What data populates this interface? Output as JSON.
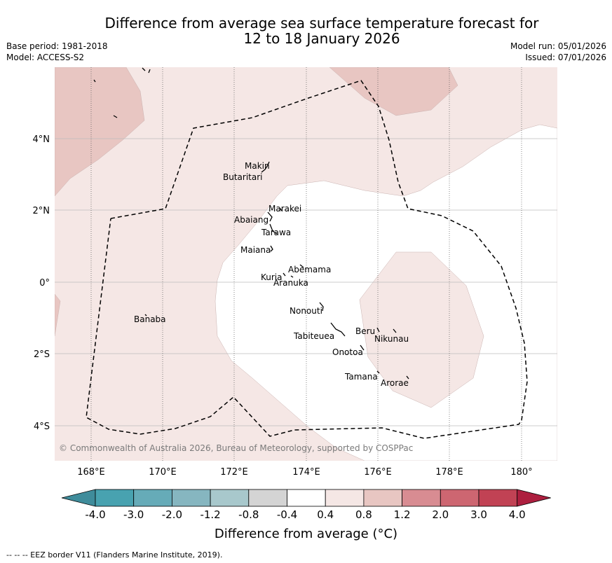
{
  "title": {
    "line1": "Difference from average sea surface temperature forecast for",
    "line2": "12 to 18 January 2026"
  },
  "meta": {
    "base_period": "Base period: 1981-2018",
    "model": "Model: ACCESS-S2",
    "model_run": "Model run: 05/01/2026",
    "issued": "Issued: 07/01/2026"
  },
  "copyright": "© Commonwealth of Australia 2026, Bureau of Meteorology, supported by COSPPac",
  "lon_ticks": [
    "168°E",
    "170°E",
    "172°E",
    "174°E",
    "176°E",
    "178°E",
    "180°"
  ],
  "lat_ticks": [
    "4°N",
    "2°N",
    "0°",
    "2°S",
    "4°S"
  ],
  "places": [
    {
      "name": "Makin"
    },
    {
      "name": "Butaritari"
    },
    {
      "name": "Marakei"
    },
    {
      "name": "Abaiang"
    },
    {
      "name": "Tarawa"
    },
    {
      "name": "Maiana"
    },
    {
      "name": "Abemama"
    },
    {
      "name": "Kuria"
    },
    {
      "name": "Aranuka"
    },
    {
      "name": "Nonouti"
    },
    {
      "name": "Tabiteuea"
    },
    {
      "name": "Beru"
    },
    {
      "name": "Nikunau"
    },
    {
      "name": "Onotoa"
    },
    {
      "name": "Tamana"
    },
    {
      "name": "Arorae"
    },
    {
      "name": "Banaba"
    }
  ],
  "colorbar": {
    "labels": [
      "-4.0",
      "-3.0",
      "-2.0",
      "-1.2",
      "-0.8",
      "-0.4",
      "0.4",
      "0.8",
      "1.2",
      "2.0",
      "3.0",
      "4.0"
    ],
    "colors": [
      "#3f8c9b",
      "#48a2b0",
      "#66abb8",
      "#86b6c0",
      "#a8c8cc",
      "#d4d4d4",
      "#ffffff",
      "#f5e7e5",
      "#e8c6c2",
      "#d88c92",
      "#cd6671",
      "#c14254",
      "#ad1f3f"
    ],
    "title": "Difference from average (°C)"
  },
  "eez_note": "--  --  -- EEZ border V11 (Flanders Marine Institute, 2019)."
}
